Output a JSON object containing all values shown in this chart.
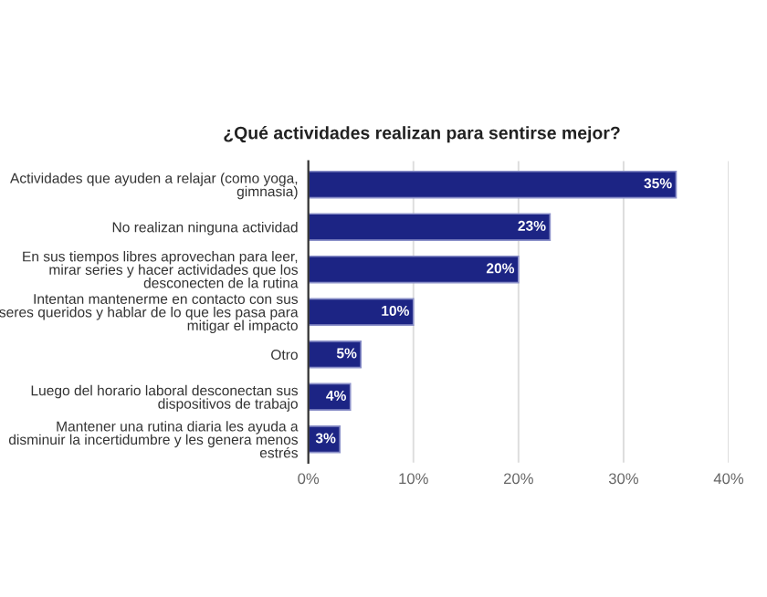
{
  "chart_data": {
    "type": "bar",
    "orientation": "horizontal",
    "title": "¿Qué actividades realizan para sentirse mejor?",
    "categories": [
      "Actividades que ayuden a relajar (como yoga,\ngimnasia)",
      "No realizan ninguna actividad",
      "En sus tiempos libres aprovechan para leer,\nmirar series y hacer actividades que los\ndesconecten de la rutina",
      "Intentan mantenerme en contacto con sus\nseres queridos y hablar de lo que les pasa para\nmitigar el impacto",
      "Otro",
      "Luego del horario laboral desconectan sus\ndispositivos de trabajo",
      "Mantener una rutina diaria les ayuda a\ndisminuir la incertidumbre y les genera menos\nestrés"
    ],
    "values": [
      35,
      23,
      20,
      10,
      5,
      4,
      3
    ],
    "value_labels": [
      "35%",
      "23%",
      "20%",
      "10%",
      "5%",
      "4%",
      "3%"
    ],
    "color": "#1c2484",
    "xlim": [
      0,
      40
    ],
    "xticks": [
      {
        "value": 0,
        "label": "0%"
      },
      {
        "value": 10,
        "label": "10%"
      },
      {
        "value": 20,
        "label": "20%"
      },
      {
        "value": 30,
        "label": "30%"
      },
      {
        "value": 40,
        "label": "40%"
      }
    ],
    "grid": "x"
  }
}
